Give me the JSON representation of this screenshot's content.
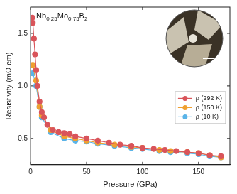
{
  "chart_data": {
    "type": "scatter",
    "title": "Nb0.25Mo0.75B2",
    "x_label": "Pressure (GPa)",
    "y_label": "Resistivity (mΩ cm)",
    "xlim": [
      0,
      178
    ],
    "ylim": [
      0.25,
      1.75
    ],
    "xticks": [
      0,
      50,
      100,
      150
    ],
    "yticks": [
      {
        "value": 0.5,
        "label": "0.5"
      },
      {
        "value": 1.0,
        "label": "1.0"
      },
      {
        "value": 1.5,
        "label": "1.5"
      }
    ],
    "grid": false,
    "legend": "right",
    "marker": "circle",
    "line_style": "solid",
    "series": [
      {
        "name": "ρ (292 K)",
        "color": "#d9545a",
        "x": [
          1.5,
          2,
          3,
          4,
          5,
          6,
          8,
          10,
          12,
          15,
          20,
          25,
          30,
          35,
          40,
          50,
          60,
          70,
          80,
          90,
          100,
          110,
          120,
          130,
          140,
          150,
          160,
          170
        ],
        "values": [
          1.65,
          1.6,
          1.45,
          1.3,
          1.15,
          1.0,
          0.85,
          0.75,
          0.7,
          0.63,
          0.58,
          0.56,
          0.55,
          0.54,
          0.52,
          0.5,
          0.48,
          0.46,
          0.44,
          0.43,
          0.41,
          0.4,
          0.39,
          0.38,
          0.37,
          0.36,
          0.34,
          0.33
        ]
      },
      {
        "name": "ρ (150 K)",
        "color": "#f0a030",
        "x": [
          2,
          5,
          8,
          10,
          18,
          30,
          40,
          50,
          60,
          75,
          90,
          100,
          115,
          125,
          140,
          150,
          160,
          170
        ],
        "values": [
          1.2,
          1.05,
          0.8,
          0.72,
          0.58,
          0.52,
          0.5,
          0.48,
          0.46,
          0.44,
          0.42,
          0.41,
          0.39,
          0.38,
          0.37,
          0.36,
          0.34,
          0.32
        ]
      },
      {
        "name": "ρ (10 K)",
        "color": "#5ab4e8",
        "x": [
          2,
          5,
          8,
          10,
          18,
          30,
          40,
          50,
          60,
          75,
          90,
          100,
          115,
          125,
          140,
          150,
          160,
          170
        ],
        "values": [
          1.12,
          1.0,
          0.8,
          0.7,
          0.56,
          0.5,
          0.48,
          0.47,
          0.45,
          0.43,
          0.41,
          0.4,
          0.38,
          0.37,
          0.36,
          0.35,
          0.33,
          0.32
        ]
      }
    ]
  }
}
